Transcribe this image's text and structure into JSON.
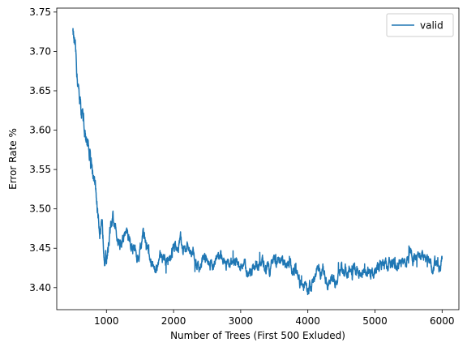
{
  "chart_data": {
    "type": "line",
    "xlabel": "Number of Trees (First 500 Exluded)",
    "ylabel": "Error Rate %",
    "xlim": [
      260,
      6250
    ],
    "ylim": [
      3.372,
      3.755
    ],
    "xticks": [
      1000,
      2000,
      3000,
      4000,
      5000,
      6000
    ],
    "xtick_labels": [
      "1000",
      "2000",
      "3000",
      "4000",
      "5000",
      "6000"
    ],
    "yticks": [
      3.4,
      3.45,
      3.5,
      3.55,
      3.6,
      3.65,
      3.7,
      3.75
    ],
    "ytick_labels": [
      "3.40",
      "3.45",
      "3.50",
      "3.55",
      "3.60",
      "3.65",
      "3.70",
      "3.75"
    ],
    "grid": false,
    "legend_position": "upper right",
    "series": [
      {
        "name": "valid",
        "color": "#1f77b4",
        "x": [
          500,
          520,
          550,
          600,
          650,
          700,
          750,
          800,
          850,
          900,
          950,
          1000,
          1050,
          1100,
          1150,
          1200,
          1250,
          1300,
          1350,
          1400,
          1450,
          1500,
          1550,
          1600,
          1650,
          1700,
          1750,
          1800,
          1850,
          1900,
          1950,
          2000,
          2050,
          2100,
          2150,
          2200,
          2250,
          2300,
          2350,
          2400,
          2450,
          2500,
          2600,
          2700,
          2800,
          2900,
          3000,
          3100,
          3200,
          3300,
          3400,
          3500,
          3600,
          3700,
          3800,
          3900,
          3950,
          4000,
          4050,
          4100,
          4150,
          4200,
          4300,
          4400,
          4500,
          4600,
          4700,
          4800,
          4900,
          5000,
          5100,
          5200,
          5300,
          5400,
          5500,
          5600,
          5700,
          5800,
          5900,
          6000
        ],
        "values": [
          3.73,
          3.71,
          3.68,
          3.64,
          3.61,
          3.59,
          3.57,
          3.55,
          3.51,
          3.48,
          3.46,
          3.44,
          3.47,
          3.48,
          3.47,
          3.46,
          3.46,
          3.47,
          3.46,
          3.45,
          3.44,
          3.45,
          3.46,
          3.45,
          3.43,
          3.42,
          3.43,
          3.44,
          3.44,
          3.43,
          3.44,
          3.45,
          3.45,
          3.46,
          3.45,
          3.45,
          3.44,
          3.44,
          3.43,
          3.43,
          3.44,
          3.44,
          3.43,
          3.44,
          3.43,
          3.43,
          3.43,
          3.42,
          3.43,
          3.43,
          3.43,
          3.43,
          3.43,
          3.43,
          3.42,
          3.41,
          3.4,
          3.4,
          3.4,
          3.41,
          3.42,
          3.42,
          3.41,
          3.41,
          3.42,
          3.42,
          3.42,
          3.42,
          3.42,
          3.42,
          3.43,
          3.43,
          3.43,
          3.43,
          3.44,
          3.44,
          3.44,
          3.43,
          3.43,
          3.43
        ]
      }
    ]
  }
}
